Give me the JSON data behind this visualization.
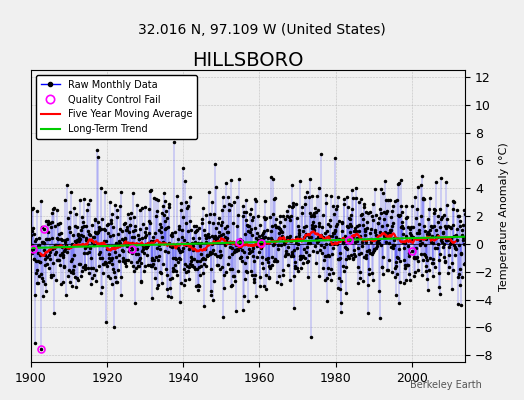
{
  "title": "HILLSBORO",
  "subtitle": "32.016 N, 97.109 W (United States)",
  "ylabel": "Temperature Anomaly (°C)",
  "credit": "Berkeley Earth",
  "xlim": [
    1900,
    2014
  ],
  "ylim": [
    -8.5,
    12.5
  ],
  "yticks": [
    -8,
    -6,
    -4,
    -2,
    0,
    2,
    4,
    6,
    8,
    10,
    12
  ],
  "xticks": [
    1900,
    1920,
    1940,
    1960,
    1980,
    2000
  ],
  "bg_color": "#f0f0f0",
  "line_color": "#0000ff",
  "marker_color": "#000000",
  "qc_color": "#ff00ff",
  "ma_color": "#ff0000",
  "trend_color": "#00cc00",
  "title_fontsize": 14,
  "subtitle_fontsize": 10,
  "seed": 42
}
